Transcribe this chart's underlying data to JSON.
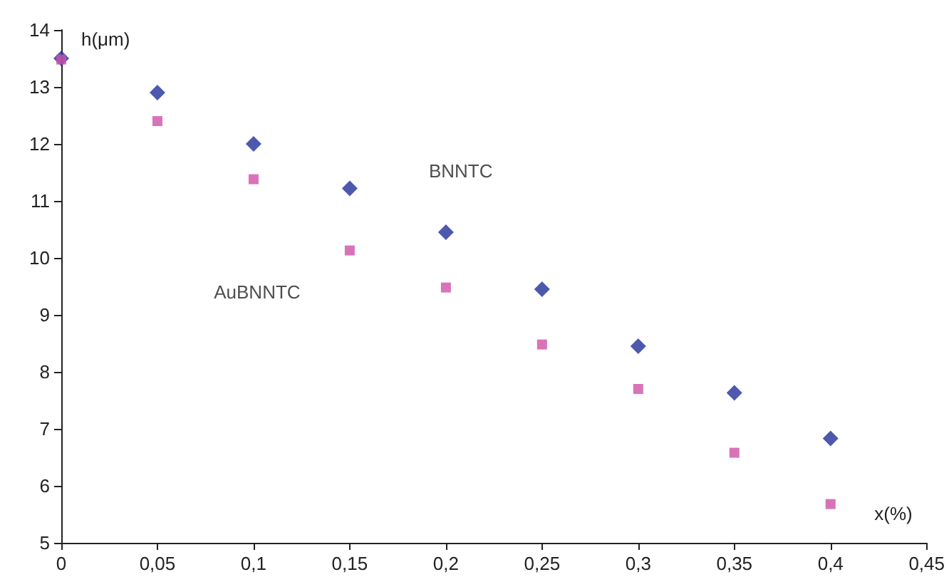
{
  "chart_data": {
    "type": "scatter",
    "xlabel": "x(%)",
    "ylabel": "h(μm)",
    "x": [
      0,
      0.05,
      0.1,
      0.15,
      0.2,
      0.25,
      0.3,
      0.35,
      0.4
    ],
    "series": [
      {
        "name": "BNNTC",
        "color": "#1f2f99",
        "marker": "diamond",
        "values": [
          13.5,
          12.9,
          12.0,
          11.22,
          10.45,
          9.45,
          8.45,
          7.63,
          6.83
        ]
      },
      {
        "name": "AuBNNTC",
        "color": "#d050a8",
        "marker": "square",
        "values": [
          13.48,
          12.4,
          11.38,
          10.13,
          9.48,
          8.48,
          7.7,
          6.58,
          5.68
        ]
      }
    ],
    "xlim": [
      0,
      0.45
    ],
    "xticks": [
      0,
      {
        "value": 0.05,
        "label": "0,05"
      },
      {
        "value": 0.1,
        "label": "0,1"
      },
      {
        "value": 0.15,
        "label": "0,15"
      },
      {
        "value": 0.2,
        "label": "0,2"
      },
      {
        "value": 0.25,
        "label": "0,25"
      },
      {
        "value": 0.3,
        "label": "0,3"
      },
      {
        "value": 0.35,
        "label": "0,35"
      },
      {
        "value": 0.4,
        "label": "0,4"
      },
      {
        "value": 0.45,
        "label": "0,45"
      }
    ],
    "ylim": [
      5,
      14
    ],
    "yticks": [
      5,
      6,
      7,
      8,
      9,
      10,
      11,
      12,
      13,
      14
    ],
    "grid": false
  }
}
